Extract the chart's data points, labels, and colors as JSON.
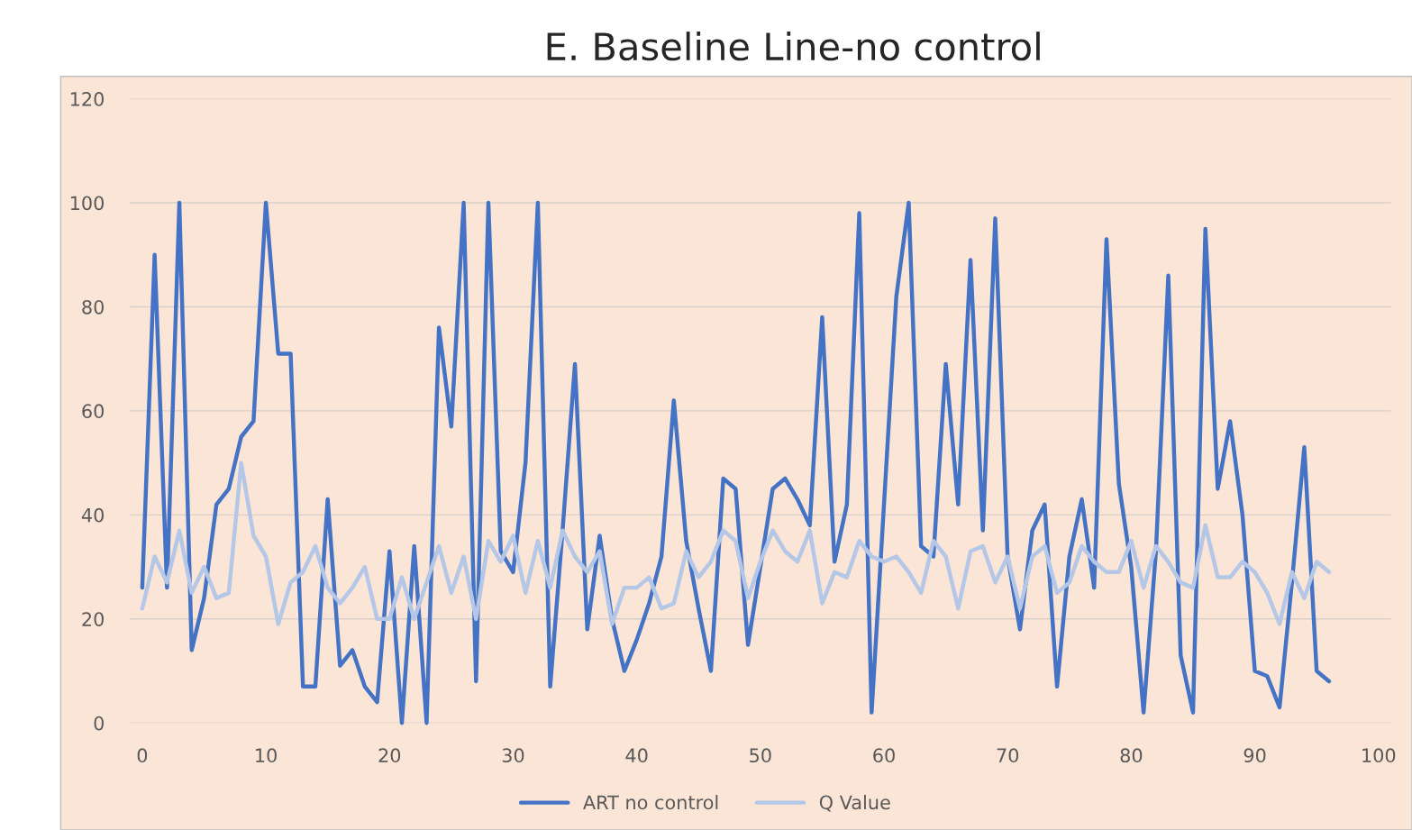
{
  "chart_data": {
    "type": "line",
    "title": "E. Baseline Line-no control",
    "x": [
      0,
      1,
      2,
      3,
      4,
      5,
      6,
      7,
      8,
      9,
      10,
      11,
      12,
      13,
      14,
      15,
      16,
      17,
      18,
      19,
      20,
      21,
      22,
      23,
      24,
      25,
      26,
      27,
      28,
      29,
      30,
      31,
      32,
      33,
      34,
      35,
      36,
      37,
      38,
      39,
      40,
      41,
      42,
      43,
      44,
      45,
      46,
      47,
      48,
      49,
      50,
      51,
      52,
      53,
      54,
      55,
      56,
      57,
      58,
      59,
      60,
      61,
      62,
      63,
      64,
      65,
      66,
      67,
      68,
      69,
      70,
      71,
      72,
      73,
      74,
      75,
      76,
      77,
      78,
      79,
      80,
      81,
      82,
      83,
      84,
      85,
      86,
      87,
      88,
      89,
      90,
      91,
      92,
      93,
      94,
      95,
      96
    ],
    "series": [
      {
        "name": "ART no control",
        "color": "#4472c4",
        "values": [
          26,
          90,
          26,
          100,
          14,
          24,
          42,
          45,
          55,
          58,
          100,
          71,
          71,
          7,
          7,
          43,
          11,
          14,
          7,
          4,
          33,
          0,
          34,
          0,
          76,
          57,
          100,
          8,
          100,
          33,
          29,
          50,
          100,
          7,
          37,
          69,
          18,
          36,
          20,
          10,
          16,
          23,
          32,
          62,
          35,
          22,
          10,
          47,
          45,
          15,
          30,
          45,
          47,
          43,
          38,
          78,
          31,
          42,
          98,
          2,
          42,
          82,
          100,
          34,
          32,
          69,
          42,
          89,
          37,
          97,
          32,
          18,
          37,
          42,
          7,
          32,
          43,
          26,
          93,
          46,
          30,
          2,
          33,
          86,
          13,
          2,
          95,
          45,
          58,
          40,
          10,
          9,
          3,
          27,
          53,
          10,
          8
        ]
      },
      {
        "name": "Q Value",
        "color": "#b4c7e7",
        "values": [
          22,
          32,
          27,
          37,
          25,
          30,
          24,
          25,
          50,
          36,
          32,
          19,
          27,
          29,
          34,
          26,
          23,
          26,
          30,
          20,
          20,
          28,
          20,
          27,
          34,
          25,
          32,
          20,
          35,
          31,
          36,
          25,
          35,
          26,
          37,
          32,
          29,
          33,
          19,
          26,
          26,
          28,
          22,
          23,
          33,
          28,
          31,
          37,
          35,
          24,
          31,
          37,
          33,
          31,
          37,
          23,
          29,
          28,
          35,
          32,
          31,
          32,
          29,
          25,
          35,
          32,
          22,
          33,
          34,
          27,
          32,
          22,
          32,
          34,
          25,
          27,
          34,
          31,
          29,
          29,
          35,
          26,
          34,
          31,
          27,
          26,
          38,
          28,
          28,
          31,
          29,
          25,
          19,
          29,
          24,
          31,
          29
        ]
      }
    ],
    "xlim": [
      -1,
      101
    ],
    "xticks": [
      0,
      10,
      20,
      30,
      40,
      50,
      60,
      70,
      80,
      90,
      100
    ],
    "ylim": [
      0,
      120
    ],
    "yticks": [
      0,
      20,
      40,
      60,
      80,
      100,
      120
    ],
    "grid": "y",
    "legend": "bottom",
    "marker": "none",
    "line_style": "solid"
  }
}
